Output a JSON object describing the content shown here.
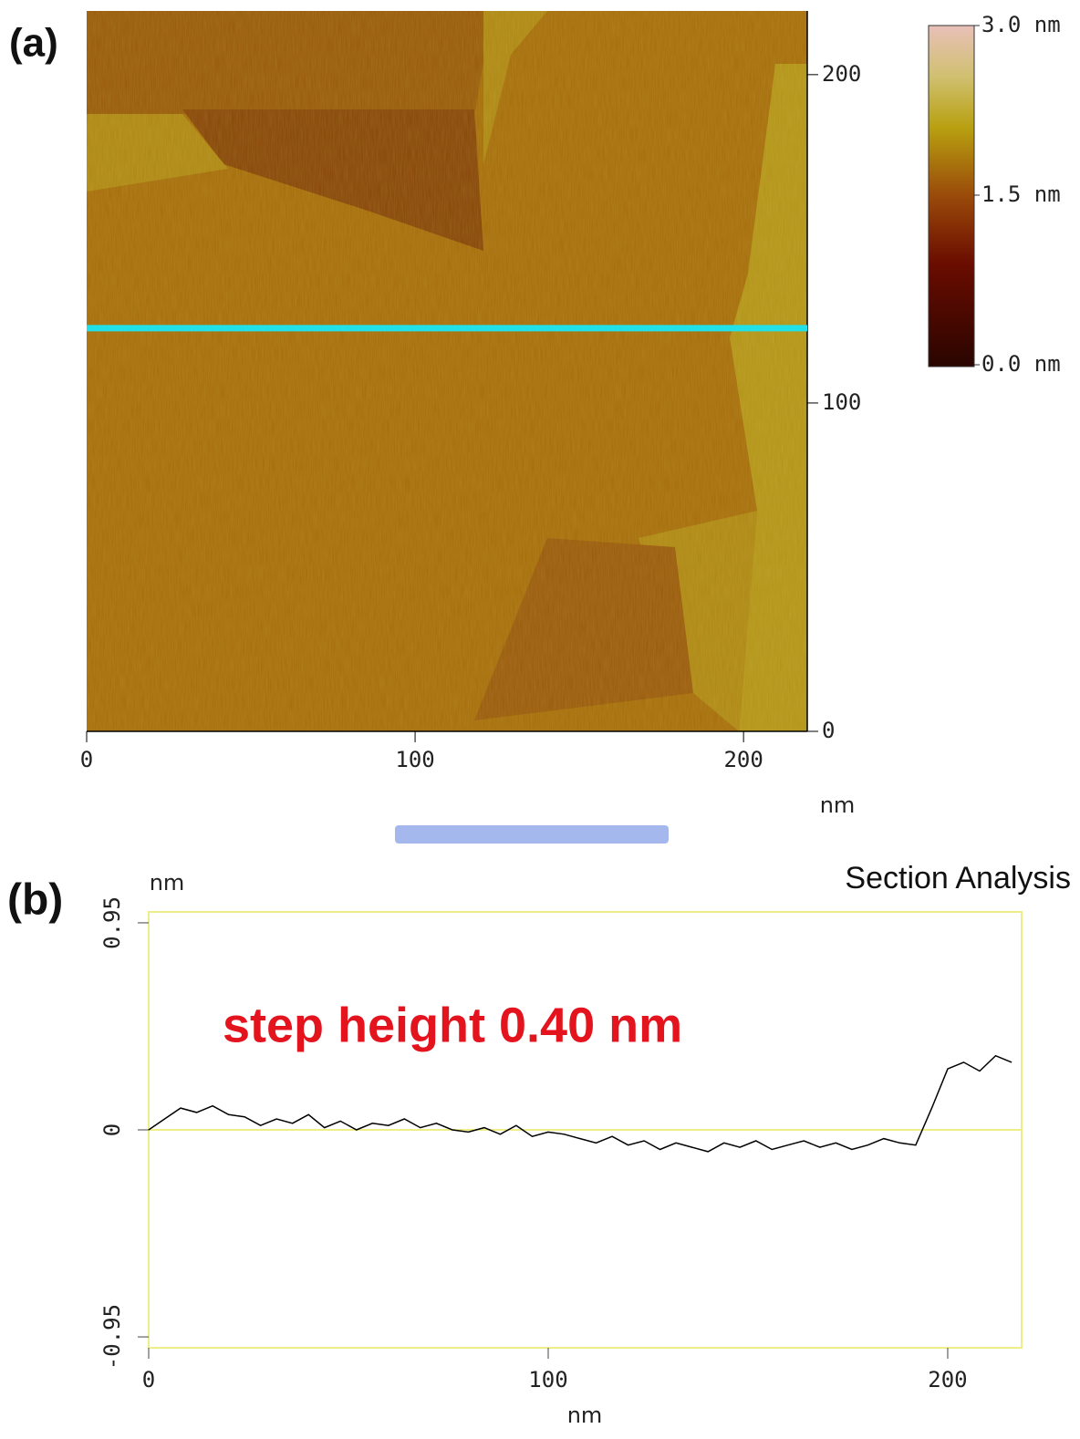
{
  "chart_data": [
    {
      "type": "image",
      "panel": "(a)",
      "xlabel": "nm",
      "xlim": [
        0,
        219.4
      ],
      "ylim": [
        0,
        219.4
      ],
      "xticks": [
        0,
        100,
        200
      ],
      "yticks": [
        0,
        100,
        200
      ],
      "section_y": 122.8,
      "colorbar": {
        "lim": [
          0,
          3
        ],
        "ticks": [
          {
            "value": 3,
            "label": "3.0 nm"
          },
          {
            "value": 1.5,
            "label": "1.5 nm"
          },
          {
            "value": 0,
            "label": "0.0 nm"
          }
        ]
      }
    },
    {
      "type": "line",
      "panel": "(b)",
      "title": "Section Analysis",
      "annotation": "step height 0.40 nm",
      "xlabel": "nm",
      "ylabel": "nm",
      "xlim": [
        0,
        218.5
      ],
      "ylim": [
        -1.0,
        1.0
      ],
      "xticks": [
        0,
        100,
        200
      ],
      "yticks": [
        -0.95,
        0,
        0.95
      ],
      "x": [
        0,
        4,
        8,
        12,
        16,
        20,
        24,
        28,
        32,
        36,
        40,
        44,
        48,
        52,
        56,
        60,
        64,
        68,
        72,
        76,
        80,
        84,
        88,
        92,
        96,
        100,
        104,
        108,
        112,
        116,
        120,
        124,
        128,
        132,
        136,
        140,
        144,
        148,
        152,
        156,
        160,
        164,
        168,
        172,
        176,
        180,
        184,
        188,
        192,
        196,
        200,
        204,
        208,
        212,
        216
      ],
      "series": [
        {
          "color": "#000000",
          "values": [
            0.0,
            0.05,
            0.1,
            0.08,
            0.11,
            0.07,
            0.06,
            0.02,
            0.05,
            0.03,
            0.07,
            0.01,
            0.04,
            0.0,
            0.03,
            0.02,
            0.05,
            0.01,
            0.03,
            0.0,
            -0.01,
            0.01,
            -0.02,
            0.02,
            -0.03,
            -0.01,
            -0.02,
            -0.04,
            -0.06,
            -0.03,
            -0.07,
            -0.05,
            -0.09,
            -0.06,
            -0.08,
            -0.1,
            -0.06,
            -0.08,
            -0.05,
            -0.09,
            -0.07,
            -0.05,
            -0.08,
            -0.06,
            -0.09,
            -0.07,
            -0.04,
            -0.06,
            -0.07,
            0.1,
            0.28,
            0.31,
            0.27,
            0.34,
            0.31
          ]
        }
      ]
    }
  ]
}
